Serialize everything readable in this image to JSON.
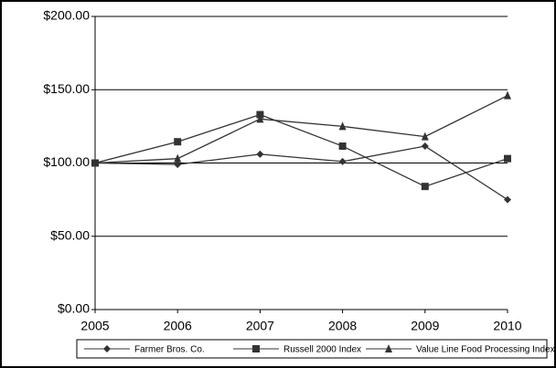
{
  "chart_data": {
    "type": "line",
    "x": [
      2005,
      2006,
      2007,
      2008,
      2009,
      2010
    ],
    "xlim": [
      2005,
      2010
    ],
    "xticks": [
      2005,
      2006,
      2007,
      2008,
      2009,
      2010
    ],
    "ylim": [
      0,
      200
    ],
    "yticks": [
      {
        "value": 0,
        "label": "$0.00"
      },
      {
        "value": 50,
        "label": "$50.00"
      },
      {
        "value": 100,
        "label": "$100.00"
      },
      {
        "value": 150,
        "label": "$150.00"
      },
      {
        "value": 200,
        "label": "$200.00"
      }
    ],
    "grid": true,
    "legend": "bottom",
    "series": [
      {
        "name": "Farmer Bros. Co.",
        "color": "#333333",
        "marker": "diamond",
        "values": [
          100,
          99,
          106,
          101,
          111.5,
          75
        ]
      },
      {
        "name": "Russell 2000 Index",
        "color": "#333333",
        "marker": "square",
        "values": [
          100,
          114.5,
          133,
          111.5,
          84,
          103
        ]
      },
      {
        "name": "Value Line Food Processing Index",
        "color": "#333333",
        "marker": "triangle",
        "values": [
          100,
          103,
          130,
          125,
          118,
          146
        ]
      }
    ]
  }
}
